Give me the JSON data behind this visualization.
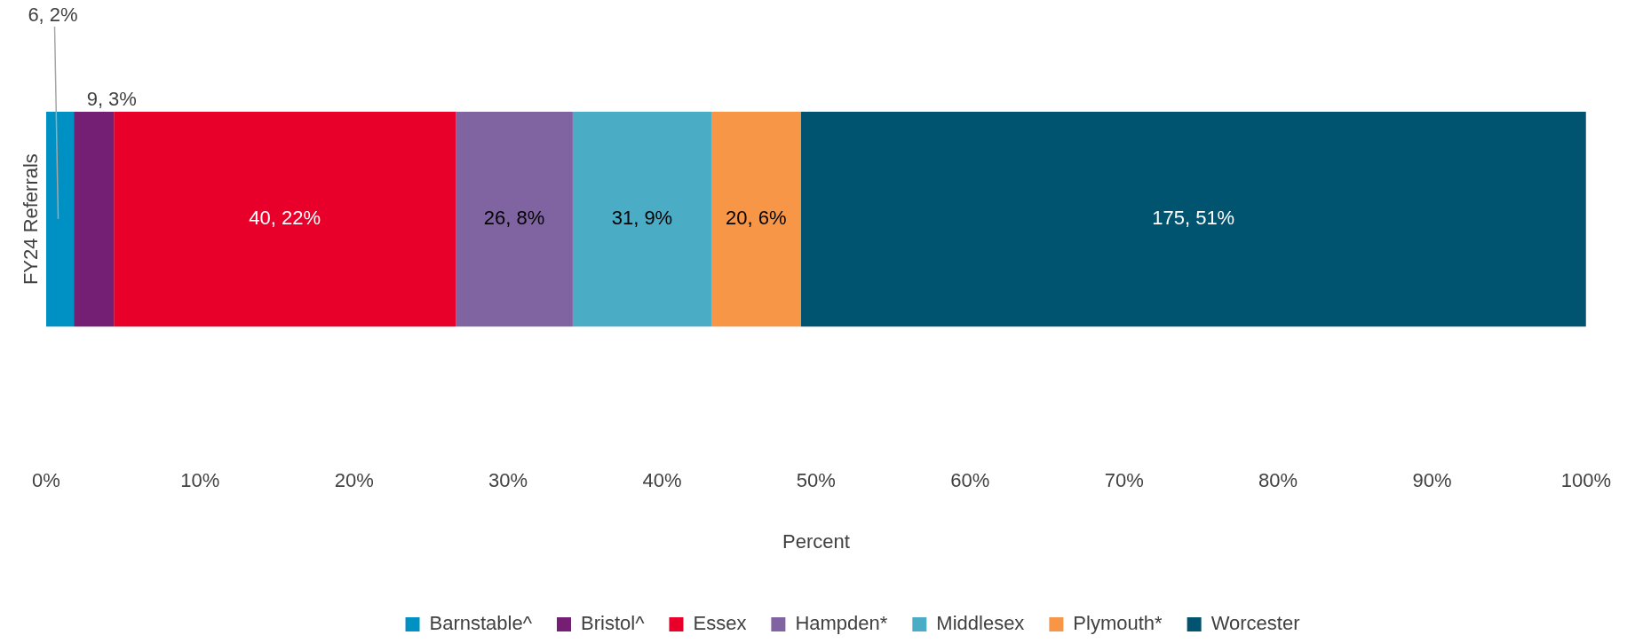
{
  "chart_data": {
    "type": "bar",
    "orientation": "horizontal",
    "stacked": true,
    "categories": [
      "FY24 Referrals"
    ],
    "xlabel": "Percent",
    "xlim": [
      0,
      100
    ],
    "xticks": [
      {
        "value": 0,
        "label": "0%"
      },
      {
        "value": 10,
        "label": "10%"
      },
      {
        "value": 20,
        "label": "20%"
      },
      {
        "value": 30,
        "label": "30%"
      },
      {
        "value": 40,
        "label": "40%"
      },
      {
        "value": 50,
        "label": "50%"
      },
      {
        "value": 60,
        "label": "60%"
      },
      {
        "value": 70,
        "label": "70%"
      },
      {
        "value": 80,
        "label": "80%"
      },
      {
        "value": 90,
        "label": "90%"
      },
      {
        "value": 100,
        "label": "100%"
      }
    ],
    "grid": false,
    "legend": "bottom",
    "series": [
      {
        "name": "Barnstable^",
        "color": "#0091c4",
        "values": [
          1.8
        ],
        "value_labels": [
          "6, 2%"
        ]
      },
      {
        "name": "Bristol^",
        "color": "#741f74",
        "values": [
          2.6
        ],
        "value_labels": [
          "9, 3%"
        ]
      },
      {
        "name": "Essex",
        "color": "#e8002a",
        "values": [
          22.2
        ],
        "value_labels": [
          "40, 22%"
        ]
      },
      {
        "name": "Hampden*",
        "color": "#8064a2",
        "values": [
          7.6
        ],
        "value_labels": [
          "26, 8%"
        ]
      },
      {
        "name": "Middlesex",
        "color": "#4bacc6",
        "values": [
          9.0
        ],
        "value_labels": [
          "31, 9%"
        ]
      },
      {
        "name": "Plymouth*",
        "color": "#f79646",
        "values": [
          5.8
        ],
        "value_labels": [
          "20, 6%"
        ]
      },
      {
        "name": "Worcester",
        "color": "#005470",
        "values": [
          51.0
        ],
        "value_labels": [
          "175, 51%"
        ]
      }
    ]
  }
}
